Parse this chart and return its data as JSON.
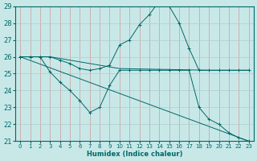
{
  "background_color": "#c8e8e8",
  "grid_color_v": "#d09898",
  "grid_color_h": "#b8d8d8",
  "line_color": "#006868",
  "xlabel": "Humidex (Indice chaleur)",
  "xlim": [
    -0.5,
    23.5
  ],
  "ylim": [
    21,
    29
  ],
  "yticks": [
    21,
    22,
    23,
    24,
    25,
    26,
    27,
    28,
    29
  ],
  "xticks": [
    0,
    1,
    2,
    3,
    4,
    5,
    6,
    7,
    8,
    9,
    10,
    11,
    12,
    13,
    14,
    15,
    16,
    17,
    18,
    19,
    20,
    21,
    22,
    23
  ],
  "lines": [
    {
      "x": [
        0,
        1,
        2,
        3,
        10,
        19,
        23
      ],
      "y": [
        26,
        26,
        26,
        26,
        25.3,
        25.2,
        25.2
      ],
      "marker": false
    },
    {
      "x": [
        0,
        1,
        2,
        3,
        4,
        5,
        6,
        7,
        8,
        9,
        10,
        11,
        12,
        13,
        14,
        15,
        16,
        17,
        18,
        19,
        20,
        21,
        22,
        23
      ],
      "y": [
        26,
        26,
        26,
        26,
        25.8,
        25.6,
        25.3,
        25.2,
        25.3,
        25.5,
        26.7,
        27.0,
        27.9,
        28.5,
        29.3,
        29.0,
        28.0,
        26.5,
        25.2,
        25.2,
        25.2,
        25.2,
        25.2,
        25.2
      ],
      "marker": true
    },
    {
      "x": [
        0,
        1,
        2,
        3,
        4,
        5,
        6,
        7,
        8,
        9,
        10,
        11,
        12,
        13,
        14,
        15,
        16,
        17,
        18,
        19,
        20,
        21,
        22,
        23
      ],
      "y": [
        26,
        26,
        26,
        25.1,
        24.5,
        24.0,
        23.4,
        22.7,
        23.0,
        24.3,
        25.2,
        25.2,
        25.2,
        25.2,
        25.2,
        25.2,
        25.2,
        25.2,
        23.0,
        22.3,
        22.0,
        21.5,
        21.2,
        21.0
      ],
      "marker": true
    },
    {
      "x": [
        0,
        23
      ],
      "y": [
        26,
        21
      ],
      "marker": false
    }
  ]
}
